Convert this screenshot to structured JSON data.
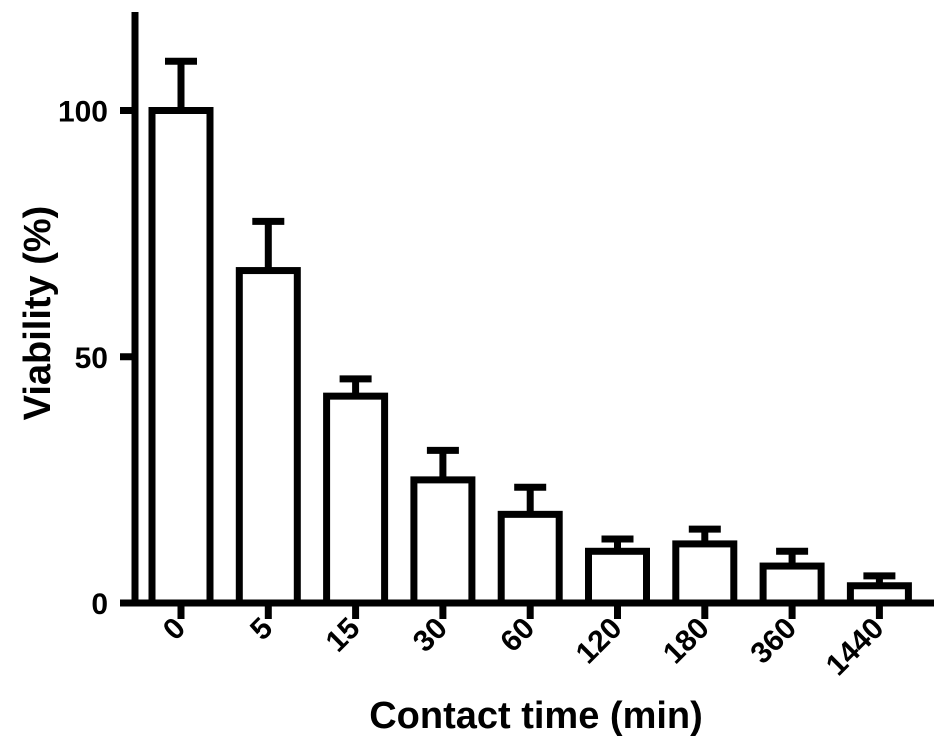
{
  "chart_data": {
    "type": "bar",
    "xlabel": "Contact time (min)",
    "ylabel": "Viability (%)",
    "categories": [
      "0",
      "5",
      "15",
      "30",
      "60",
      "120",
      "180",
      "360",
      "1440"
    ],
    "values": [
      100,
      67.5,
      42,
      25,
      18,
      10.5,
      12,
      7.5,
      3.5
    ],
    "error_upper": [
      10,
      10,
      3.5,
      6,
      5.5,
      2.5,
      3,
      3,
      2
    ],
    "ylim": [
      0,
      120
    ],
    "yticks": [
      0,
      50,
      100
    ],
    "grid": false,
    "legend": "none",
    "bar_fill": "#ffffff",
    "bar_stroke": "#000000"
  }
}
